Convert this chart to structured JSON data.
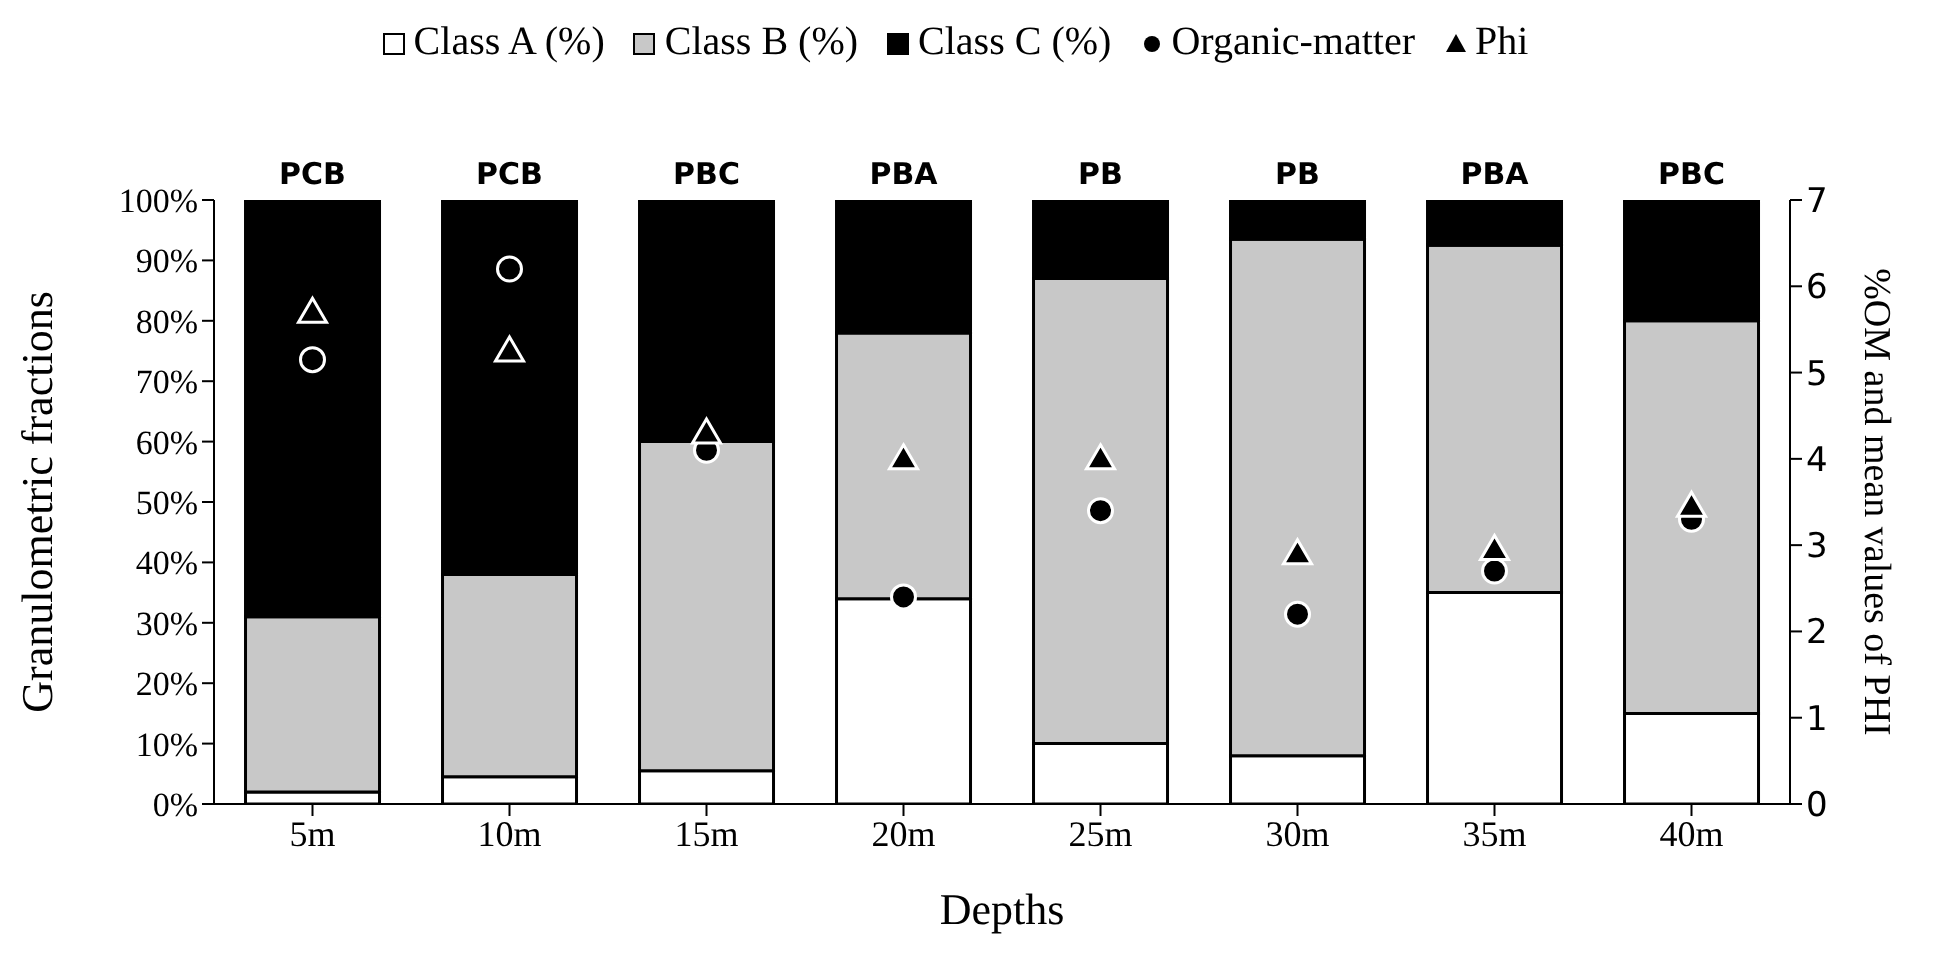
{
  "chart_data": {
    "type": "bar",
    "stacked": true,
    "xlabel": "Depths",
    "ylabel": "Granulometric fractions",
    "y2label": "%OM and mean values of PHI",
    "categories": [
      "5m",
      "10m",
      "15m",
      "20m",
      "25m",
      "30m",
      "35m",
      "40m"
    ],
    "series": [
      {
        "name": "Class A (%)",
        "color": "#ffffff",
        "values": [
          2,
          4.5,
          5.5,
          34,
          10,
          8,
          35,
          15
        ]
      },
      {
        "name": "Class B (%)",
        "color": "#c8c8c8",
        "values": [
          29,
          33.5,
          54.5,
          44,
          77,
          85.5,
          57.5,
          65
        ]
      },
      {
        "name": "Class C (%)",
        "color": "#000000",
        "values": [
          69,
          62,
          40,
          22,
          13,
          6.5,
          7.5,
          20
        ]
      },
      {
        "name": "Organic-matter",
        "type": "scatter",
        "axis": "y2",
        "marker": "circle",
        "color": "#000000",
        "values": [
          5.15,
          6.2,
          4.1,
          2.4,
          3.4,
          2.2,
          2.7,
          3.3
        ]
      },
      {
        "name": "Phi",
        "type": "scatter",
        "axis": "y2",
        "marker": "triangle",
        "color": "#000000",
        "values": [
          5.7,
          5.25,
          4.3,
          4.0,
          4.0,
          2.9,
          2.95,
          3.45
        ]
      }
    ],
    "ylim": [
      0,
      100
    ],
    "yticks": [
      {
        "value": 0,
        "label": "0%"
      },
      {
        "value": 10,
        "label": "10%"
      },
      {
        "value": 20,
        "label": "20%"
      },
      {
        "value": 30,
        "label": "30%"
      },
      {
        "value": 40,
        "label": "40%"
      },
      {
        "value": 50,
        "label": "50%"
      },
      {
        "value": 60,
        "label": "60%"
      },
      {
        "value": 70,
        "label": "70%"
      },
      {
        "value": 80,
        "label": "80%"
      },
      {
        "value": 90,
        "label": "90%"
      },
      {
        "value": 100,
        "label": "100%"
      }
    ],
    "y2lim": [
      0,
      7
    ],
    "y2ticks": [
      0,
      1,
      2,
      3,
      4,
      5,
      6,
      7
    ],
    "annotations": [
      "PCB",
      "PCB",
      "PBC",
      "PBA",
      "PB",
      "PB",
      "PBA",
      "PBC"
    ],
    "legend": "top",
    "grid": false
  }
}
